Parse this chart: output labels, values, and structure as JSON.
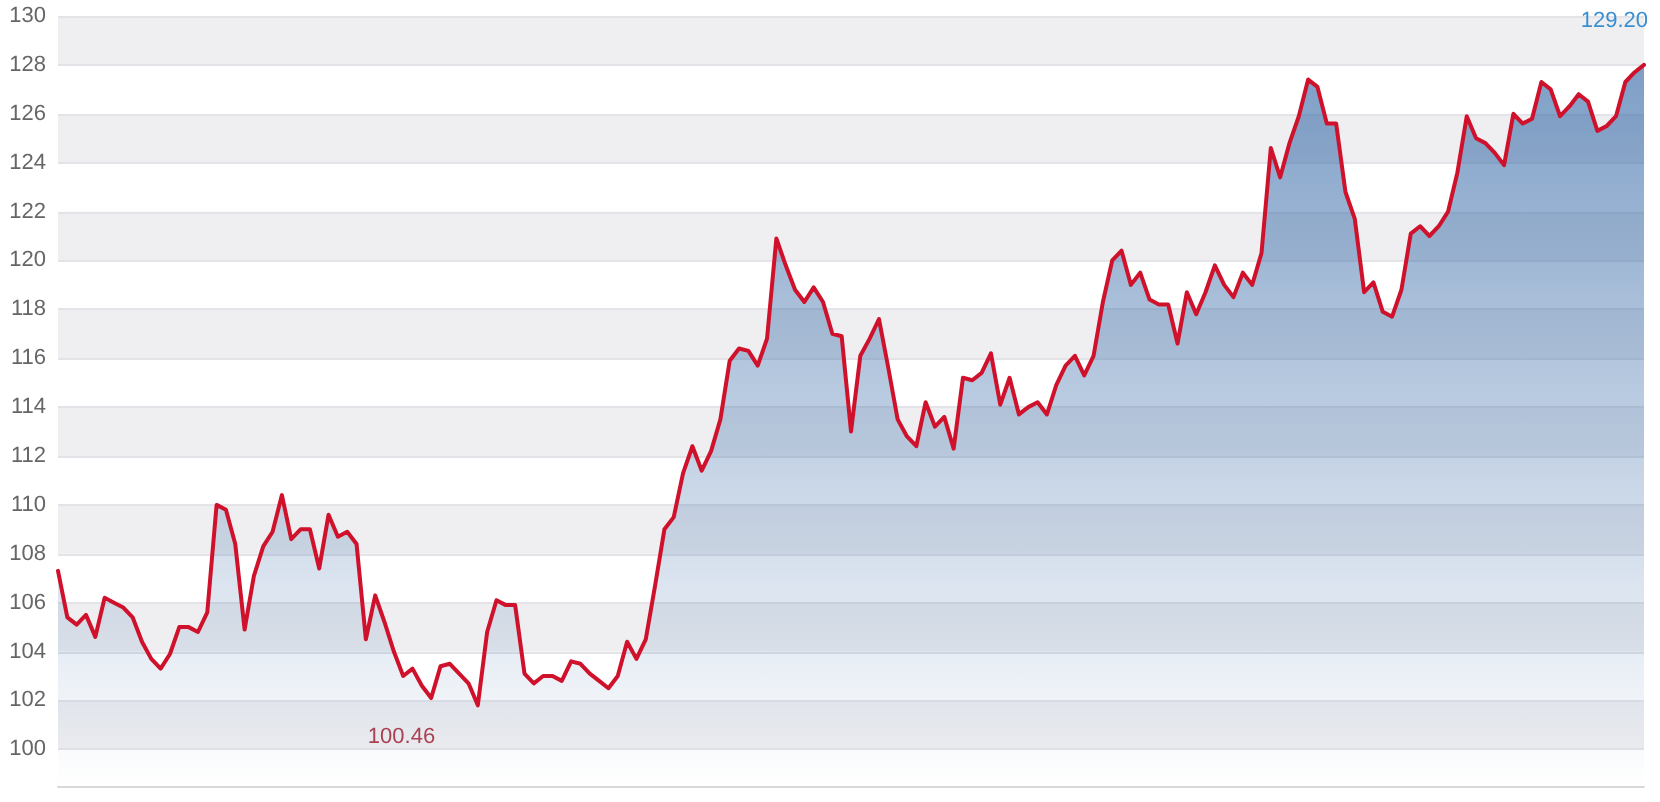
{
  "chart_data": {
    "type": "area",
    "categories": [
      null,
      null,
      null,
      null,
      null,
      null,
      null,
      null,
      null,
      null,
      null,
      null,
      null,
      null,
      null,
      null,
      null,
      null,
      null,
      null,
      null,
      null,
      null,
      null,
      null,
      null,
      null,
      null,
      null,
      null,
      null,
      null,
      null,
      null,
      null,
      null,
      null,
      null,
      null,
      null,
      null,
      null,
      null,
      null,
      null,
      null,
      null,
      null,
      null,
      null,
      null,
      null,
      null,
      null,
      null,
      null,
      null,
      null,
      null,
      null,
      null,
      null,
      null,
      null,
      null,
      null,
      null,
      null,
      null,
      null,
      null,
      null,
      null,
      null,
      null,
      null,
      null,
      null,
      null,
      null,
      null,
      null,
      null,
      null,
      null,
      null,
      null,
      null,
      null,
      null,
      null,
      null,
      null,
      null,
      null,
      null,
      null,
      null,
      null,
      null,
      null,
      null,
      null,
      null,
      null,
      null,
      null,
      null,
      null,
      null,
      null,
      null,
      null,
      null,
      null,
      null,
      null,
      null,
      null,
      null,
      null,
      null,
      null,
      null,
      null,
      null,
      null,
      null,
      null,
      null,
      null,
      null,
      null,
      null,
      null,
      null,
      null,
      null,
      null,
      null,
      null,
      null,
      null,
      null,
      null,
      null,
      null,
      null,
      null,
      null,
      null,
      null,
      null,
      null,
      null,
      null,
      null,
      null,
      null,
      null,
      null,
      null,
      null,
      null,
      null,
      null,
      null,
      null,
      null,
      null,
      null
    ],
    "series": [
      {
        "color": "#d0112b",
        "values": [
          107.3,
          105.4,
          105.1,
          105.5,
          104.6,
          106.2,
          106.0,
          105.8,
          105.4,
          104.4,
          103.7,
          103.3,
          103.9,
          105.0,
          105.0,
          104.8,
          105.6,
          110.0,
          109.8,
          108.4,
          104.9,
          107.1,
          108.3,
          108.9,
          110.4,
          108.6,
          109.0,
          109.0,
          107.4,
          109.6,
          108.7,
          108.9,
          108.4,
          104.5,
          106.3,
          105.2,
          104.0,
          103.0,
          103.3,
          102.6,
          102.1,
          103.4,
          103.5,
          103.1,
          102.7,
          101.8,
          104.8,
          106.1,
          105.9,
          105.9,
          103.1,
          102.7,
          103.0,
          103.0,
          102.8,
          103.6,
          103.5,
          103.1,
          102.8,
          102.5,
          103.0,
          104.4,
          103.7,
          104.5,
          106.7,
          109.0,
          109.5,
          111.3,
          112.4,
          111.4,
          112.2,
          113.5,
          115.9,
          116.4,
          116.3,
          115.7,
          116.8,
          120.9,
          119.8,
          118.8,
          118.3,
          118.9,
          118.3,
          117.0,
          116.9,
          113.0,
          116.1,
          116.8,
          117.6,
          115.6,
          113.5,
          112.8,
          112.4,
          114.2,
          113.2,
          113.6,
          112.3,
          115.2,
          115.1,
          115.4,
          116.2,
          114.1,
          115.2,
          113.7,
          114.0,
          114.2,
          113.7,
          114.9,
          115.7,
          116.1,
          115.3,
          116.1,
          118.3,
          120.0,
          120.4,
          119.0,
          119.5,
          118.4,
          118.2,
          118.2,
          116.6,
          118.7,
          117.8,
          118.7,
          119.8,
          119.0,
          118.5,
          119.5,
          119.0,
          120.3,
          124.6,
          123.4,
          124.8,
          125.9,
          127.4,
          127.1,
          125.6,
          125.6,
          122.8,
          121.7,
          118.7,
          119.1,
          117.9,
          117.7,
          118.8,
          121.1,
          121.4,
          121.0,
          121.4,
          122.0,
          123.6,
          125.9,
          125.0,
          124.8,
          124.4,
          123.9,
          126.0,
          125.6,
          125.8,
          127.3,
          127.0,
          125.9,
          126.3,
          126.8,
          126.5,
          125.3,
          125.5,
          125.9,
          127.3,
          127.7,
          128.0
        ]
      }
    ],
    "ylim": [
      98.5,
      130
    ],
    "yticks": [
      100,
      102,
      104,
      106,
      108,
      110,
      112,
      114,
      116,
      118,
      120,
      122,
      124,
      126,
      128,
      130
    ],
    "grid": "y",
    "tick_labels": "y",
    "line_style": "solid",
    "annotations": [
      "100.46",
      "129.20"
    ]
  }
}
